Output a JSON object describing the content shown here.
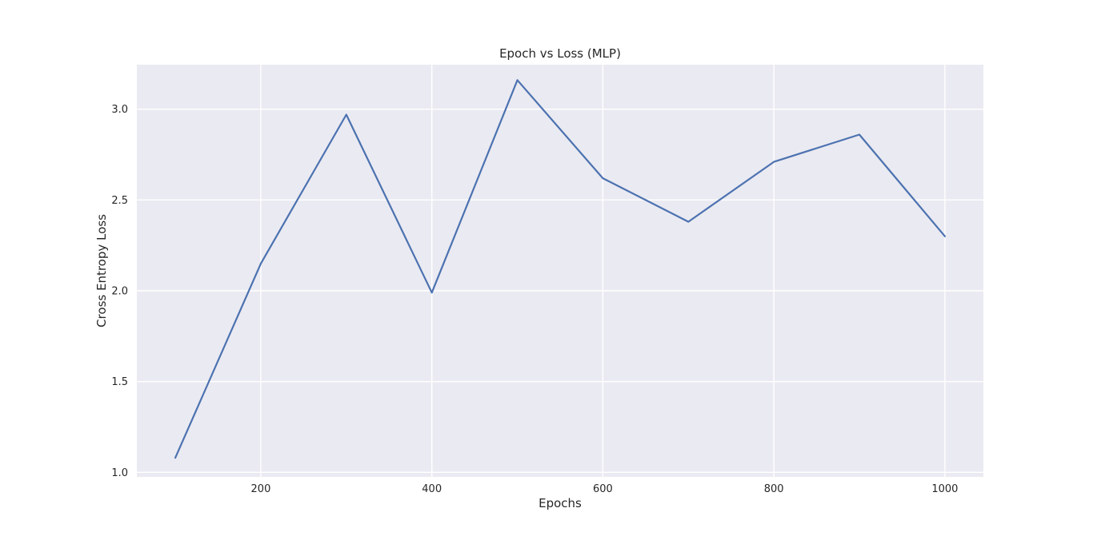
{
  "chart_data": {
    "type": "line",
    "title": "Epoch vs Loss (MLP)",
    "xlabel": "Epochs",
    "ylabel": "Cross Entropy Loss",
    "xlim": [
      55,
      1045
    ],
    "ylim": [
      0.975,
      3.245
    ],
    "xticks": [
      200,
      400,
      600,
      800,
      1000
    ],
    "xtick_labels": [
      "200",
      "400",
      "600",
      "800",
      "1000"
    ],
    "yticks": [
      1.0,
      1.5,
      2.0,
      2.5,
      3.0
    ],
    "ytick_labels": [
      "1.0",
      "1.5",
      "2.0",
      "2.5",
      "3.0"
    ],
    "grid": true,
    "style": "seaborn",
    "colors": {
      "background": "#EAEAF2",
      "grid": "#FFFFFF",
      "line": "#4C72B0",
      "text": "#262626"
    },
    "series": [
      {
        "x": [
          100,
          200,
          300,
          400,
          500,
          600,
          700,
          800,
          900,
          1000
        ],
        "values": [
          1.08,
          2.15,
          2.97,
          1.99,
          3.16,
          2.62,
          2.38,
          2.71,
          2.86,
          2.3
        ]
      }
    ]
  }
}
